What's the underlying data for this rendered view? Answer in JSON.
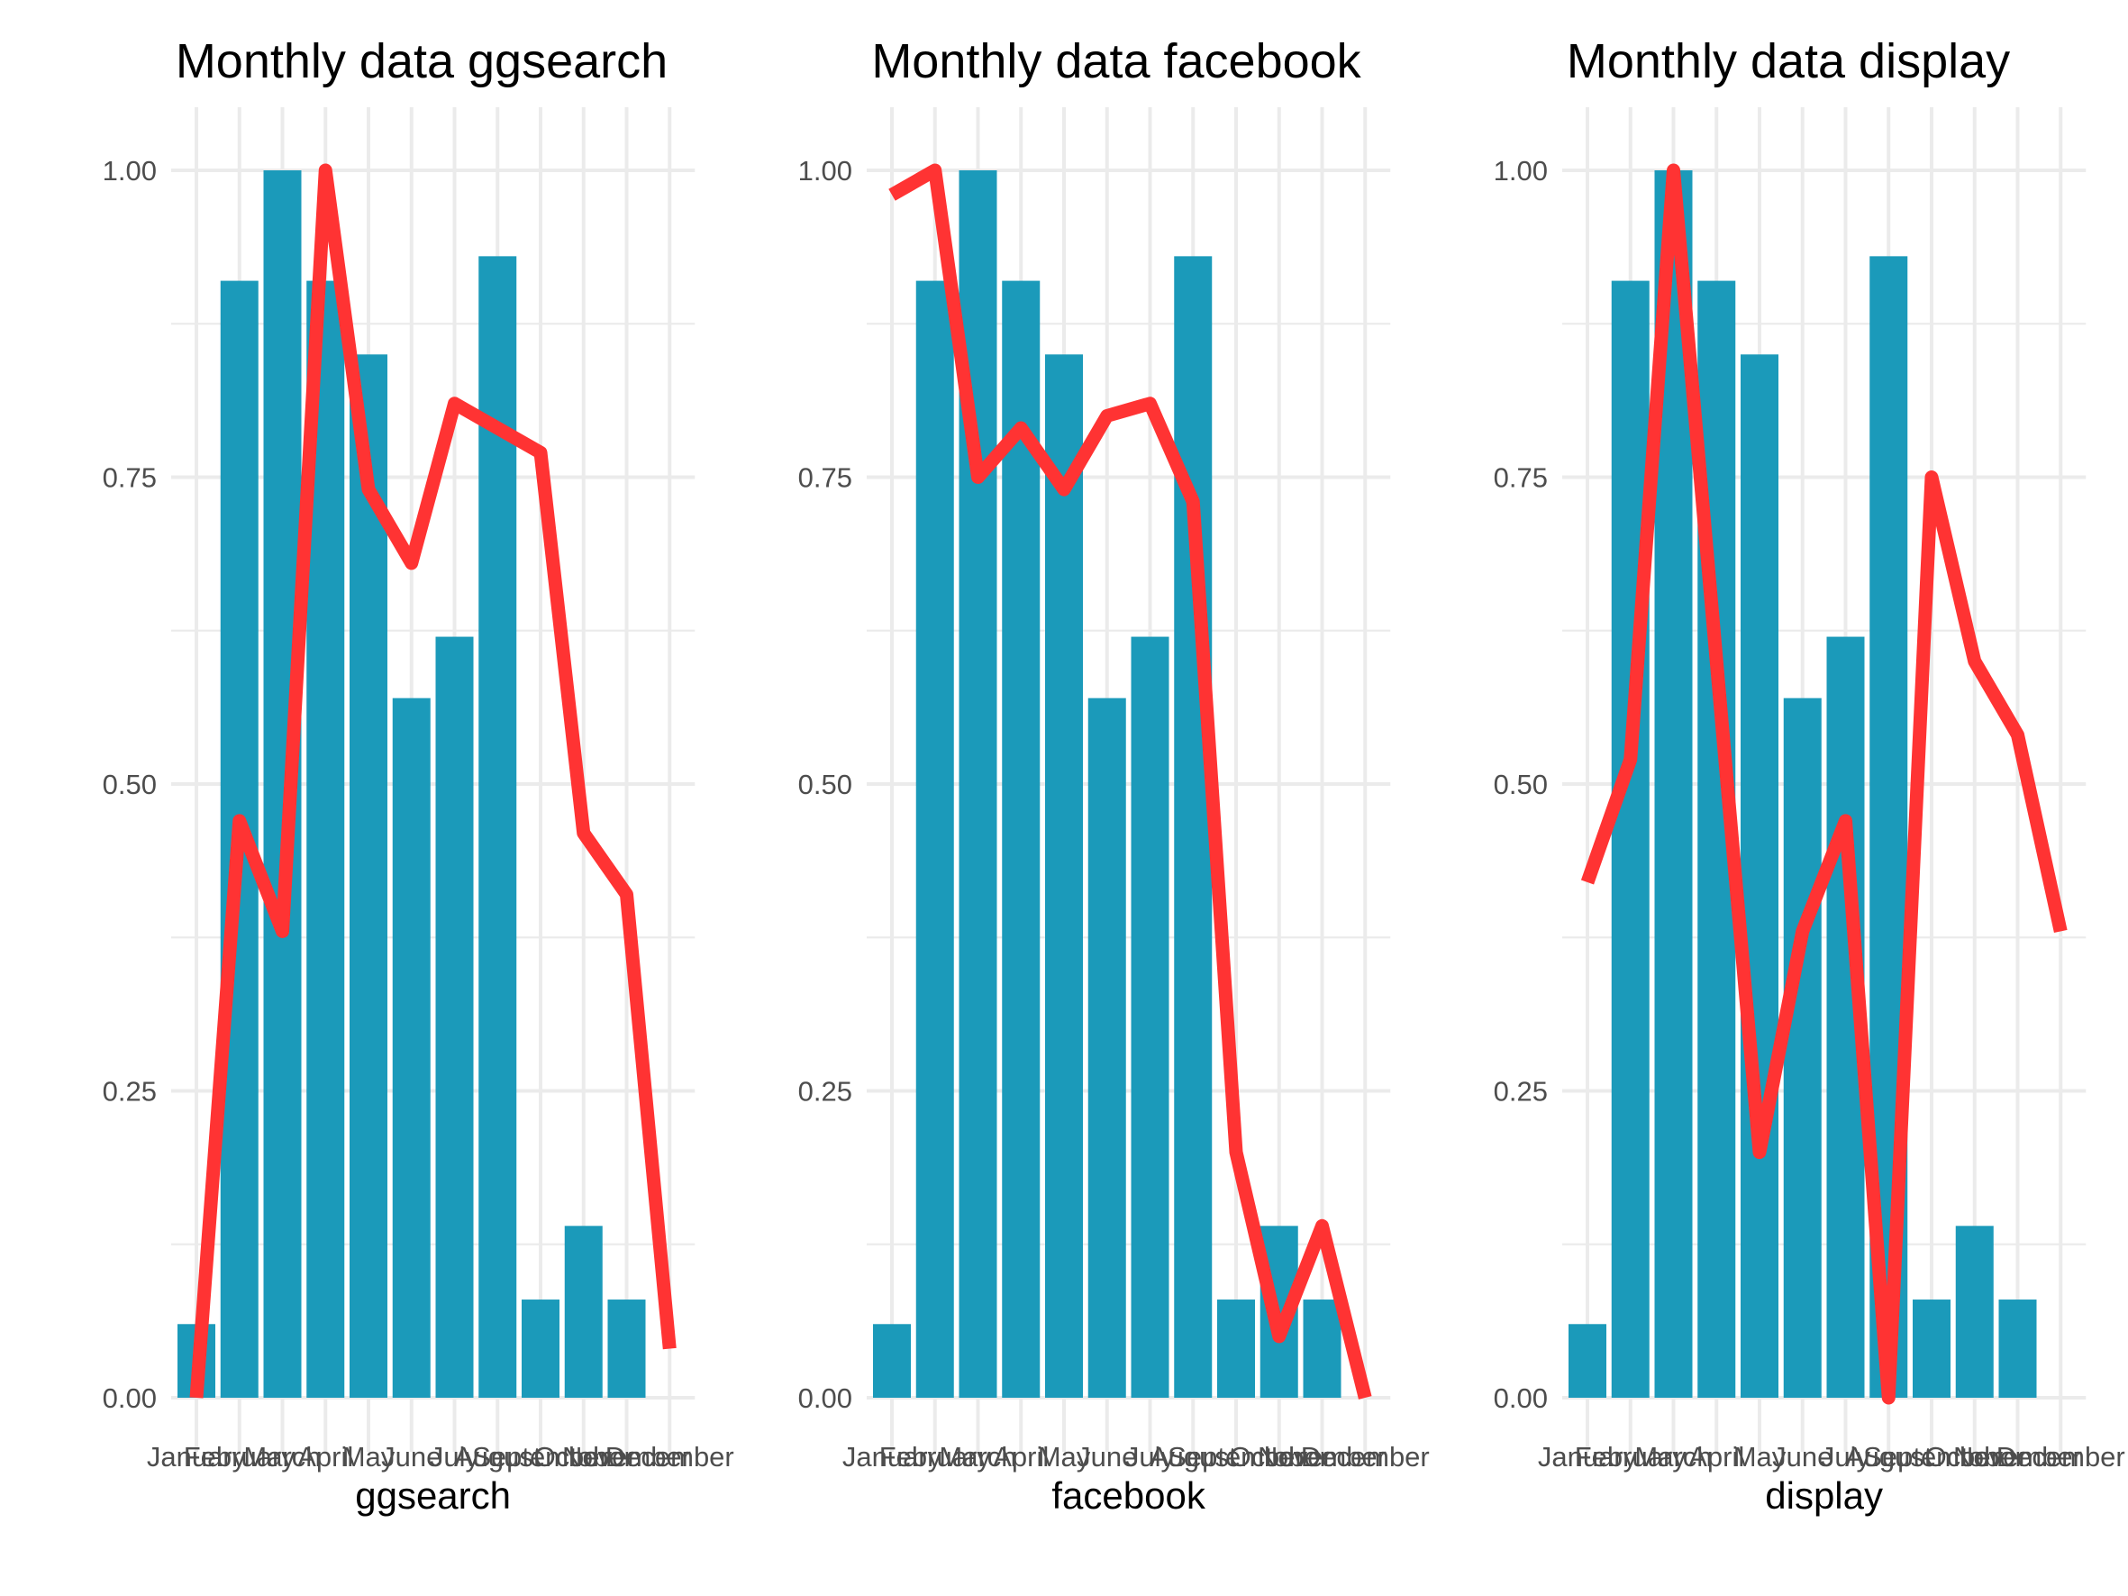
{
  "colors": {
    "bar": "#1b9aba",
    "line": "#ff3333",
    "grid": "#ebebeb",
    "tick_text": "#4d4d4d"
  },
  "chart_data": [
    {
      "type": "bar",
      "title": "Monthly data ggsearch",
      "xlabel": "ggsearch",
      "ylabel": "",
      "ylim": [
        0,
        1
      ],
      "yticks": [
        "0.00",
        "0.25",
        "0.50",
        "0.75",
        "1.00"
      ],
      "grid": true,
      "categories": [
        "January",
        "February",
        "March",
        "April",
        "May",
        "June",
        "July",
        "August",
        "September",
        "October",
        "November",
        "December"
      ],
      "series": [
        {
          "type": "bar",
          "values": [
            0.06,
            0.91,
            1.0,
            0.91,
            0.85,
            0.57,
            0.62,
            0.93,
            0.08,
            0.14,
            0.08,
            null
          ]
        },
        {
          "type": "line",
          "values": [
            0.0,
            0.47,
            0.38,
            1.0,
            0.74,
            0.68,
            0.81,
            0.79,
            0.77,
            0.46,
            0.41,
            0.04
          ]
        }
      ]
    },
    {
      "type": "bar",
      "title": "Monthly data facebook",
      "xlabel": "facebook",
      "ylabel": "",
      "ylim": [
        0,
        1
      ],
      "yticks": [
        "0.00",
        "0.25",
        "0.50",
        "0.75",
        "1.00"
      ],
      "grid": true,
      "categories": [
        "January",
        "February",
        "March",
        "April",
        "May",
        "June",
        "July",
        "August",
        "September",
        "October",
        "November",
        "December"
      ],
      "series": [
        {
          "type": "bar",
          "values": [
            0.06,
            0.91,
            1.0,
            0.91,
            0.85,
            0.57,
            0.62,
            0.93,
            0.08,
            0.14,
            0.08,
            null
          ]
        },
        {
          "type": "line",
          "values": [
            0.98,
            1.0,
            0.75,
            0.79,
            0.74,
            0.8,
            0.81,
            0.73,
            0.2,
            0.05,
            0.14,
            0.0
          ]
        }
      ]
    },
    {
      "type": "bar",
      "title": "Monthly data display",
      "xlabel": "display",
      "ylabel": "",
      "ylim": [
        0,
        1
      ],
      "yticks": [
        "0.00",
        "0.25",
        "0.50",
        "0.75",
        "1.00"
      ],
      "grid": true,
      "categories": [
        "January",
        "February",
        "March",
        "April",
        "May",
        "June",
        "July",
        "August",
        "September",
        "October",
        "November",
        "December"
      ],
      "series": [
        {
          "type": "bar",
          "values": [
            0.06,
            0.91,
            1.0,
            0.91,
            0.85,
            0.57,
            0.62,
            0.93,
            0.08,
            0.14,
            0.08,
            null
          ]
        },
        {
          "type": "line",
          "values": [
            0.42,
            0.52,
            1.0,
            0.6,
            0.2,
            0.38,
            0.47,
            0.0,
            0.75,
            0.6,
            0.54,
            0.38
          ]
        }
      ]
    }
  ]
}
